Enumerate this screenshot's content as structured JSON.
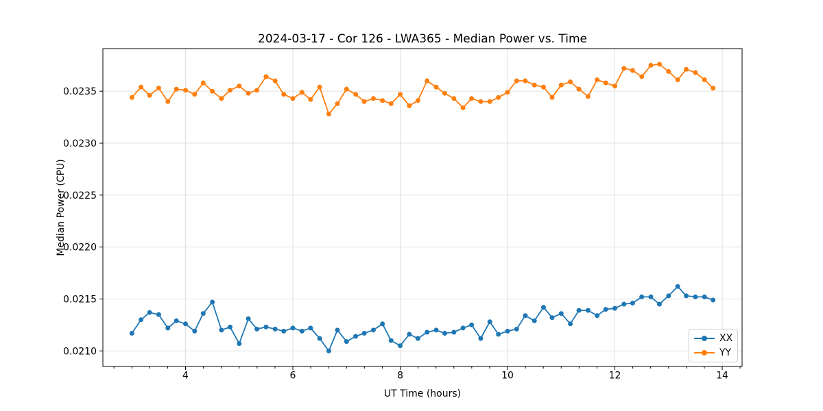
{
  "title": "2024-03-17 - Cor 126 - LWA365 - Median Power vs. Time",
  "xlabel": "UT Time (hours)",
  "ylabel": "Median Power (CPU)",
  "legend": {
    "position": "lower right",
    "entries": [
      "XX",
      "YY"
    ]
  },
  "colors": {
    "xx": "#1f77b4",
    "yy": "#ff7f0e",
    "grid": "#e0e0e0",
    "spine": "#000000"
  },
  "chart_data": {
    "type": "line",
    "title": "2024-03-17 - Cor 126 - LWA365 - Median Power vs. Time",
    "xlabel": "UT Time (hours)",
    "ylabel": "Median Power (CPU)",
    "grid": true,
    "legend_position": "lower right",
    "xlim": [
      2.46,
      14.37
    ],
    "ylim": [
      0.02085,
      0.02391
    ],
    "x_ticks": [
      4,
      6,
      8,
      10,
      12,
      14
    ],
    "x_tick_labels": [
      "4",
      "6",
      "8",
      "10",
      "12",
      "14"
    ],
    "x_minor_tick_step": 0.3333,
    "y_ticks": [
      0.021,
      0.0215,
      0.022,
      0.0225,
      0.023,
      0.0235
    ],
    "y_tick_labels": [
      "0.0210",
      "0.0215",
      "0.0220",
      "0.0225",
      "0.0230",
      "0.0235"
    ],
    "x": [
      3.0,
      3.17,
      3.33,
      3.5,
      3.67,
      3.83,
      4.0,
      4.17,
      4.33,
      4.5,
      4.67,
      4.83,
      5.0,
      5.17,
      5.33,
      5.5,
      5.67,
      5.83,
      6.0,
      6.17,
      6.33,
      6.5,
      6.67,
      6.83,
      7.0,
      7.17,
      7.33,
      7.5,
      7.67,
      7.83,
      8.0,
      8.17,
      8.33,
      8.5,
      8.67,
      8.83,
      9.0,
      9.17,
      9.33,
      9.5,
      9.67,
      9.83,
      10.0,
      10.17,
      10.33,
      10.5,
      10.67,
      10.83,
      11.0,
      11.17,
      11.33,
      11.5,
      11.67,
      11.83,
      12.0,
      12.17,
      12.33,
      12.5,
      12.67,
      12.83,
      13.0,
      13.17,
      13.33,
      13.5,
      13.67,
      13.83
    ],
    "series": [
      {
        "name": "XX",
        "color": "#1f77b4",
        "values": [
          0.02117,
          0.0213,
          0.02137,
          0.02135,
          0.02122,
          0.02129,
          0.02126,
          0.02119,
          0.02136,
          0.02147,
          0.0212,
          0.02123,
          0.02107,
          0.02131,
          0.02121,
          0.02123,
          0.02121,
          0.02119,
          0.02122,
          0.02119,
          0.02122,
          0.02112,
          0.021,
          0.0212,
          0.02109,
          0.02114,
          0.02117,
          0.0212,
          0.02126,
          0.0211,
          0.02105,
          0.02116,
          0.02112,
          0.02118,
          0.0212,
          0.02117,
          0.02118,
          0.02122,
          0.02125,
          0.02112,
          0.02128,
          0.02116,
          0.02119,
          0.02121,
          0.02134,
          0.02129,
          0.02142,
          0.02132,
          0.02136,
          0.02126,
          0.02139,
          0.02139,
          0.02134,
          0.0214,
          0.02141,
          0.02145,
          0.02146,
          0.02152,
          0.02152,
          0.02145,
          0.02153,
          0.02162,
          0.02153,
          0.02152,
          0.02152,
          0.02149
        ]
      },
      {
        "name": "YY",
        "color": "#ff7f0e",
        "values": [
          0.02344,
          0.02354,
          0.02346,
          0.02353,
          0.0234,
          0.02352,
          0.02351,
          0.02347,
          0.02358,
          0.0235,
          0.02343,
          0.02351,
          0.02355,
          0.02348,
          0.02351,
          0.02364,
          0.0236,
          0.02347,
          0.02343,
          0.02349,
          0.02342,
          0.02354,
          0.02328,
          0.02338,
          0.02352,
          0.02347,
          0.0234,
          0.02343,
          0.02341,
          0.02338,
          0.02347,
          0.02336,
          0.02341,
          0.0236,
          0.02354,
          0.02348,
          0.02343,
          0.02334,
          0.02343,
          0.0234,
          0.0234,
          0.02344,
          0.02349,
          0.0236,
          0.0236,
          0.02356,
          0.02354,
          0.02344,
          0.02356,
          0.02359,
          0.02352,
          0.02345,
          0.02361,
          0.02358,
          0.02355,
          0.02372,
          0.0237,
          0.02364,
          0.02375,
          0.02376,
          0.02369,
          0.02361,
          0.02371,
          0.02368,
          0.02361,
          0.02353
        ]
      }
    ]
  }
}
